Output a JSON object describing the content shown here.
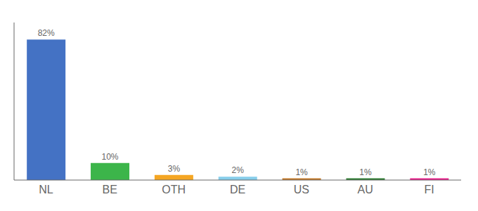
{
  "chart_data": {
    "type": "bar",
    "categories": [
      "NL",
      "BE",
      "OTH",
      "DE",
      "US",
      "AU",
      "FI"
    ],
    "values": [
      82,
      10,
      3,
      2,
      1,
      1,
      1
    ],
    "value_labels": [
      "82%",
      "10%",
      "3%",
      "2%",
      "1%",
      "1%",
      "1%"
    ],
    "colors": [
      "#4472c4",
      "#3cb54a",
      "#f5a623",
      "#87ceeb",
      "#c47a2a",
      "#2e7d32",
      "#e91e8c"
    ],
    "ylim": [
      0,
      92
    ],
    "data_labels": true,
    "tick_labels": "x",
    "grid": false
  }
}
